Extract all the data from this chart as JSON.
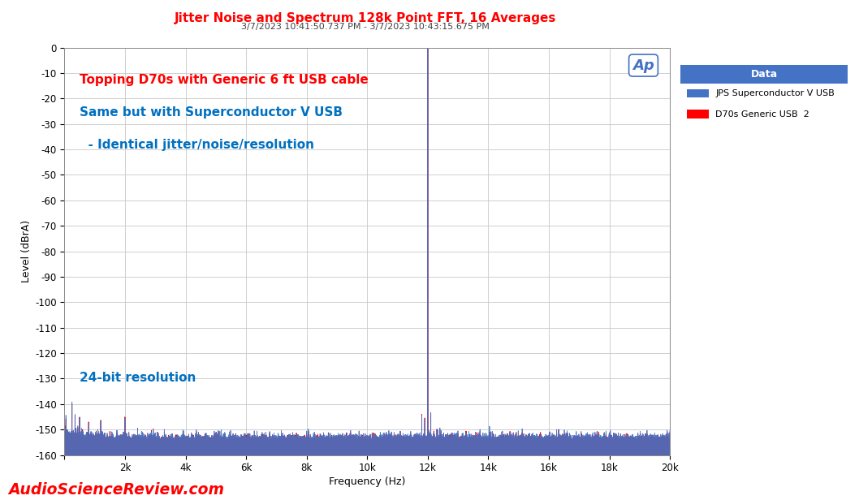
{
  "title_line1": "Jitter Noise and Spectrum 128k Point FFT, 16 Averages",
  "title_line2": "3/7/2023 10:41:50.737 PM - 3/7/2023 10:43:15.675 PM",
  "xlabel": "Frequency (Hz)",
  "ylabel": "Level (dBrA)",
  "xlim": [
    0,
    20000
  ],
  "ylim": [
    -160,
    0
  ],
  "yticks": [
    0,
    -10,
    -20,
    -30,
    -40,
    -50,
    -60,
    -70,
    -80,
    -90,
    -100,
    -110,
    -120,
    -130,
    -140,
    -150,
    -160
  ],
  "xticks": [
    0,
    2000,
    4000,
    6000,
    8000,
    10000,
    12000,
    14000,
    16000,
    18000,
    20000
  ],
  "xticklabels": [
    "",
    "2k",
    "4k",
    "6k",
    "8k",
    "10k",
    "12k",
    "14k",
    "16k",
    "18k",
    "20k"
  ],
  "color_red": "#FF0000",
  "color_blue": "#4472C4",
  "annotation_line1": "Topping D70s with Generic 6 ft USB cable",
  "annotation_line2": "Same but with Superconductor V USB",
  "annotation_line3": "  - Identical jitter/noise/resolution",
  "annotation_line4": "24-bit resolution",
  "annotation_color_red": "#FF0000",
  "annotation_color_blue": "#0070C0",
  "legend_title": "Data",
  "legend_label1": "JPS Superconductor V USB",
  "legend_label2": "D70s Generic USB  2",
  "title_color": "#FF0000",
  "subtitle_color": "#404040",
  "watermark": "AudioScienceReview.com",
  "watermark_color": "#FF0000",
  "background_color": "#FFFFFF",
  "plot_bg_color": "#FFFFFF",
  "grid_color": "#C8C8C8",
  "noise_floor_mean": -157.5,
  "noise_floor_std": 1.8,
  "signal_freq": 12000,
  "signal_peak": 0.0,
  "ap_logo_color": "#4472C4"
}
